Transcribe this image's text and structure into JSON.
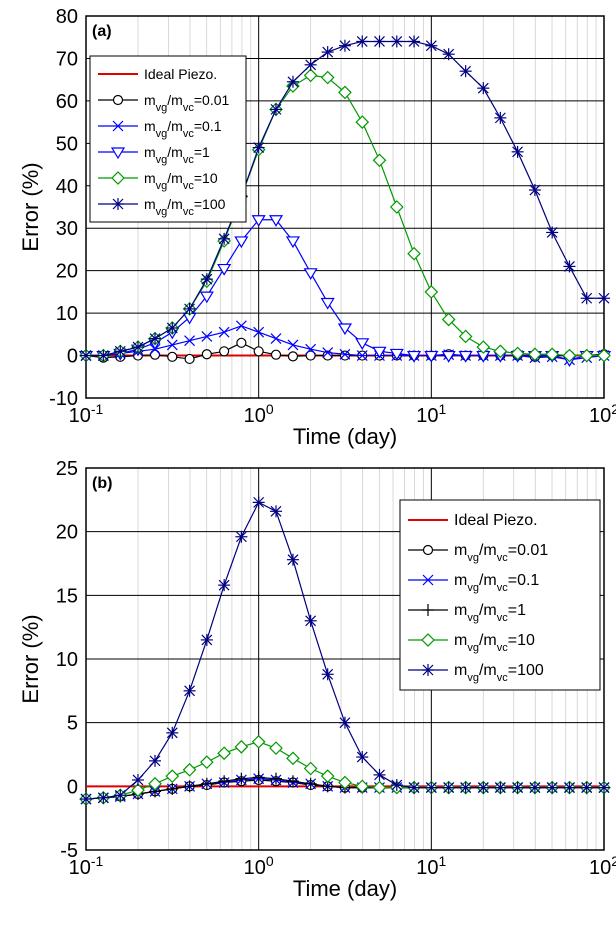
{
  "chart_data": [
    {
      "type": "line",
      "panel_label": "(a)",
      "x_label": "Time (day)",
      "y_label": "Error (%)",
      "x": [
        0.1,
        0.126,
        0.158,
        0.2,
        0.251,
        0.316,
        0.398,
        0.501,
        0.631,
        0.794,
        1,
        1.26,
        1.58,
        2,
        2.51,
        3.16,
        3.98,
        5.01,
        6.31,
        7.94,
        10,
        12.6,
        15.8,
        20,
        25.1,
        31.6,
        39.8,
        50.1,
        63.1,
        79.4,
        100
      ],
      "xlim": [
        0.1,
        100
      ],
      "xscale": "log",
      "xticks": [
        {
          "value": 0.1,
          "label": "10-1"
        },
        {
          "value": 1,
          "label": "100"
        },
        {
          "value": 10,
          "label": "101"
        },
        {
          "value": 100,
          "label": "102"
        }
      ],
      "ylim": [
        -10,
        80
      ],
      "yticks": [
        -10,
        0,
        10,
        20,
        30,
        40,
        50,
        60,
        70,
        80
      ],
      "grid": true,
      "legend_loc": "upper left",
      "series": [
        {
          "name": "Ideal Piezo.",
          "color": "#e00000",
          "marker": "none",
          "values": [
            0,
            0,
            0,
            0,
            0,
            0,
            0,
            0,
            0,
            0,
            0,
            0,
            0,
            0,
            0,
            0,
            0,
            0,
            0,
            0,
            0,
            0,
            0,
            0,
            0,
            0,
            0,
            0,
            0,
            0,
            0
          ]
        },
        {
          "name": "mvg/mvc=0.01",
          "color": "#000000",
          "marker": "circle",
          "values": [
            0,
            -0.5,
            -0.3,
            0,
            0.2,
            -0.3,
            -0.8,
            0.3,
            1,
            3,
            1,
            0.2,
            -0.2,
            0,
            0,
            0,
            0,
            0,
            0,
            0,
            0,
            0.3,
            0,
            0,
            0,
            0,
            -0.3,
            0,
            0,
            0,
            0.3
          ]
        },
        {
          "name": "mvg/mvc=0.1",
          "color": "#0000ff",
          "marker": "x",
          "values": [
            0,
            0,
            0.5,
            1,
            1.5,
            2.5,
            3.5,
            4.5,
            5.5,
            7,
            5.5,
            4,
            2.5,
            1.5,
            0.7,
            0.3,
            0,
            0,
            0,
            0,
            0,
            0.2,
            0,
            0,
            0,
            0,
            -0.5,
            -0.3,
            -1,
            -0.5,
            0
          ]
        },
        {
          "name": "mvg/mvc=1",
          "color": "#0000ff",
          "marker": "tri",
          "values": [
            0,
            0,
            0.5,
            1.5,
            3,
            5.5,
            9,
            14,
            20.5,
            27,
            32,
            32,
            27,
            19.5,
            12.5,
            6.5,
            3,
            1,
            0.5,
            0,
            0,
            0,
            0,
            0,
            0,
            0,
            0,
            0,
            -1,
            0,
            0
          ]
        },
        {
          "name": "mvg/mvc=10",
          "color": "#009900",
          "marker": "diamond",
          "values": [
            0,
            0,
            1,
            2,
            4,
            6.5,
            11,
            17.5,
            27,
            37.5,
            48.5,
            58,
            63.5,
            66,
            65.5,
            62,
            55,
            46,
            35,
            24,
            15,
            8.5,
            4.5,
            2,
            1,
            0.5,
            0.3,
            0.3,
            0,
            0,
            0
          ]
        },
        {
          "name": "mvg/mvc=100",
          "color": "#000080",
          "marker": "star",
          "values": [
            0,
            0,
            1,
            2,
            4,
            6.5,
            11,
            18,
            27.5,
            37.5,
            49,
            58,
            64.5,
            68.5,
            71.5,
            73,
            74,
            74,
            74,
            74,
            73,
            71,
            67,
            63,
            56,
            48,
            39,
            29,
            21,
            13.5,
            13.5
          ]
        }
      ]
    },
    {
      "type": "line",
      "panel_label": "(b)",
      "x_label": "Time (day)",
      "y_label": "Error (%)",
      "x": [
        0.1,
        0.126,
        0.158,
        0.2,
        0.251,
        0.316,
        0.398,
        0.501,
        0.631,
        0.794,
        1,
        1.26,
        1.58,
        2,
        2.51,
        3.16,
        3.98,
        5.01,
        6.31,
        7.94,
        10,
        12.6,
        15.8,
        20,
        25.1,
        31.6,
        39.8,
        50.1,
        63.1,
        79.4,
        100
      ],
      "xlim": [
        0.1,
        100
      ],
      "xscale": "log",
      "xticks": [
        {
          "value": 0.1,
          "label": "10-1"
        },
        {
          "value": 1,
          "label": "100"
        },
        {
          "value": 10,
          "label": "101"
        },
        {
          "value": 100,
          "label": "102"
        }
      ],
      "ylim": [
        -5,
        25
      ],
      "yticks": [
        -5,
        0,
        5,
        10,
        15,
        20,
        25
      ],
      "grid": true,
      "legend_loc": "upper right",
      "series": [
        {
          "name": "Ideal Piezo.",
          "color": "#e00000",
          "marker": "none",
          "values": [
            0,
            0,
            0,
            0,
            0,
            0,
            0,
            0,
            0,
            0,
            0,
            0,
            0,
            0,
            0,
            0,
            0,
            0,
            0,
            0,
            0,
            0,
            0,
            0,
            0,
            0,
            0,
            0,
            0,
            0,
            0
          ]
        },
        {
          "name": "mvg/mvc=0.01",
          "color": "#000000",
          "marker": "circle",
          "values": [
            -1,
            -0.9,
            -0.8,
            -0.6,
            -0.4,
            -0.2,
            0,
            0.1,
            0.3,
            0.4,
            0.5,
            0.4,
            0.3,
            0.1,
            0,
            -0.1,
            -0.1,
            -0.1,
            -0.1,
            -0.1,
            -0.1,
            -0.1,
            -0.1,
            -0.1,
            -0.1,
            -0.1,
            -0.1,
            -0.1,
            -0.1,
            -0.1,
            -0.1
          ]
        },
        {
          "name": "mvg/mvc=0.1",
          "color": "#0000ff",
          "marker": "x",
          "values": [
            -1,
            -0.9,
            -0.8,
            -0.6,
            -0.4,
            -0.2,
            0,
            0.2,
            0.3,
            0.5,
            0.6,
            0.5,
            0.3,
            0.2,
            0,
            -0.1,
            -0.1,
            -0.1,
            -0.1,
            -0.1,
            -0.1,
            -0.1,
            -0.1,
            -0.1,
            -0.1,
            -0.1,
            -0.1,
            -0.1,
            -0.1,
            -0.1,
            -0.1
          ]
        },
        {
          "name": "mvg/mvc=1",
          "color": "#000000",
          "marker": "plus",
          "values": [
            -1,
            -0.9,
            -0.8,
            -0.6,
            -0.4,
            -0.2,
            0,
            0.2,
            0.4,
            0.6,
            0.7,
            0.6,
            0.4,
            0.2,
            0,
            -0.1,
            -0.1,
            -0.1,
            -0.1,
            -0.1,
            -0.1,
            -0.1,
            -0.1,
            -0.1,
            -0.1,
            -0.1,
            -0.1,
            -0.1,
            -0.1,
            -0.1,
            -0.1
          ]
        },
        {
          "name": "mvg/mvc=10",
          "color": "#009900",
          "marker": "diamond",
          "values": [
            -1,
            -0.9,
            -0.7,
            -0.3,
            0.2,
            0.8,
            1.3,
            1.9,
            2.6,
            3.1,
            3.5,
            3,
            2.2,
            1.4,
            0.8,
            0.3,
            0,
            -0.1,
            -0.1,
            -0.1,
            -0.1,
            -0.1,
            -0.1,
            -0.1,
            -0.1,
            -0.1,
            -0.1,
            -0.1,
            -0.1,
            -0.1,
            -0.1
          ]
        },
        {
          "name": "mvg/mvc=100",
          "color": "#000080",
          "marker": "star",
          "values": [
            -1,
            -0.9,
            -0.7,
            0.5,
            2,
            4.2,
            7.5,
            11.5,
            15.8,
            19.6,
            22.3,
            21.6,
            17.8,
            13,
            8.8,
            5,
            2.3,
            0.9,
            0.1,
            -0.1,
            -0.1,
            -0.1,
            -0.1,
            -0.1,
            -0.1,
            -0.1,
            -0.1,
            -0.1,
            -0.1,
            -0.1,
            -0.1
          ]
        }
      ]
    }
  ]
}
